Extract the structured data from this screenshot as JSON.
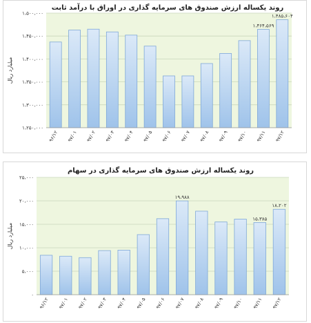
{
  "colors": {
    "plot_background": "#eef6df",
    "bar_fill_top": "#dbe9f8",
    "bar_fill_bottom": "#9fc3ea",
    "bar_stroke": "#7ea7d8",
    "grid": "#c9d7bb"
  },
  "chart_data": [
    {
      "type": "bar",
      "title": "روند یکساله ارزش صندوق های سرمایه گذاری در اوراق با درآمد ثابت",
      "ylabel": "میلیارد ریال",
      "ylim": [
        1250000,
        1500000
      ],
      "y_ticks": [
        1250000,
        1300000,
        1350000,
        1400000,
        1450000,
        1500000
      ],
      "y_tick_labels": [
        "۱،۲۵۰،۰۰۰",
        "۱،۳۰۰،۰۰۰",
        "۱،۳۵۰،۰۰۰",
        "۱،۴۰۰،۰۰۰",
        "۱،۴۵۰،۰۰۰",
        "۱،۵۰۰،۰۰۰"
      ],
      "categories": [
        "۹۶/۱۲",
        "۹۷/۰۱",
        "۹۷/۰۲",
        "۹۷/۰۳",
        "۹۷/۰۴",
        "۹۷/۰۵",
        "۹۷/۰۶",
        "۹۷/۰۷",
        "۹۷/۰۸",
        "۹۷/۰۹",
        "۹۷/۱۰",
        "۹۷/۱۱",
        "۹۷/۱۲"
      ],
      "values": [
        1437000,
        1463000,
        1465000,
        1459000,
        1452000,
        1428000,
        1363000,
        1363000,
        1390000,
        1412000,
        1440000,
        1464569,
        1485604
      ],
      "data_labels": [
        "",
        "",
        "",
        "",
        "",
        "",
        "",
        "",
        "",
        "",
        "",
        "۱،۴۶۴،۵۶۹",
        "۱،۴۸۵،۶۰۴"
      ]
    },
    {
      "type": "bar",
      "title": "روند یکساله ارزش صندوق های سرمایه گذاری در سهام",
      "ylabel": "میلیارد ریال",
      "ylim": [
        0,
        25000
      ],
      "y_ticks": [
        0,
        5000,
        10000,
        15000,
        20000,
        25000
      ],
      "y_tick_labels": [
        "۰",
        "۵،۰۰۰",
        "۱۰،۰۰۰",
        "۱۵،۰۰۰",
        "۲۰،۰۰۰",
        "۲۵،۰۰۰"
      ],
      "categories": [
        "۹۶/۱۲",
        "۹۷/۰۱",
        "۹۷/۰۲",
        "۹۷/۰۳",
        "۹۷/۰۴",
        "۹۷/۰۵",
        "۹۷/۰۶",
        "۹۷/۰۷",
        "۹۷/۰۸",
        "۹۷/۰۹",
        "۹۷/۱۰",
        "۹۷/۱۱",
        "۹۷/۱۲"
      ],
      "values": [
        8400,
        8200,
        7900,
        9400,
        9500,
        12800,
        16200,
        19988,
        17800,
        15500,
        16100,
        15385,
        18202
      ],
      "data_labels": [
        "",
        "",
        "",
        "",
        "",
        "",
        "",
        "۱۹،۹۸۸",
        "",
        "",
        "",
        "۱۵،۳۸۵",
        "۱۸،۲۰۲"
      ]
    }
  ]
}
